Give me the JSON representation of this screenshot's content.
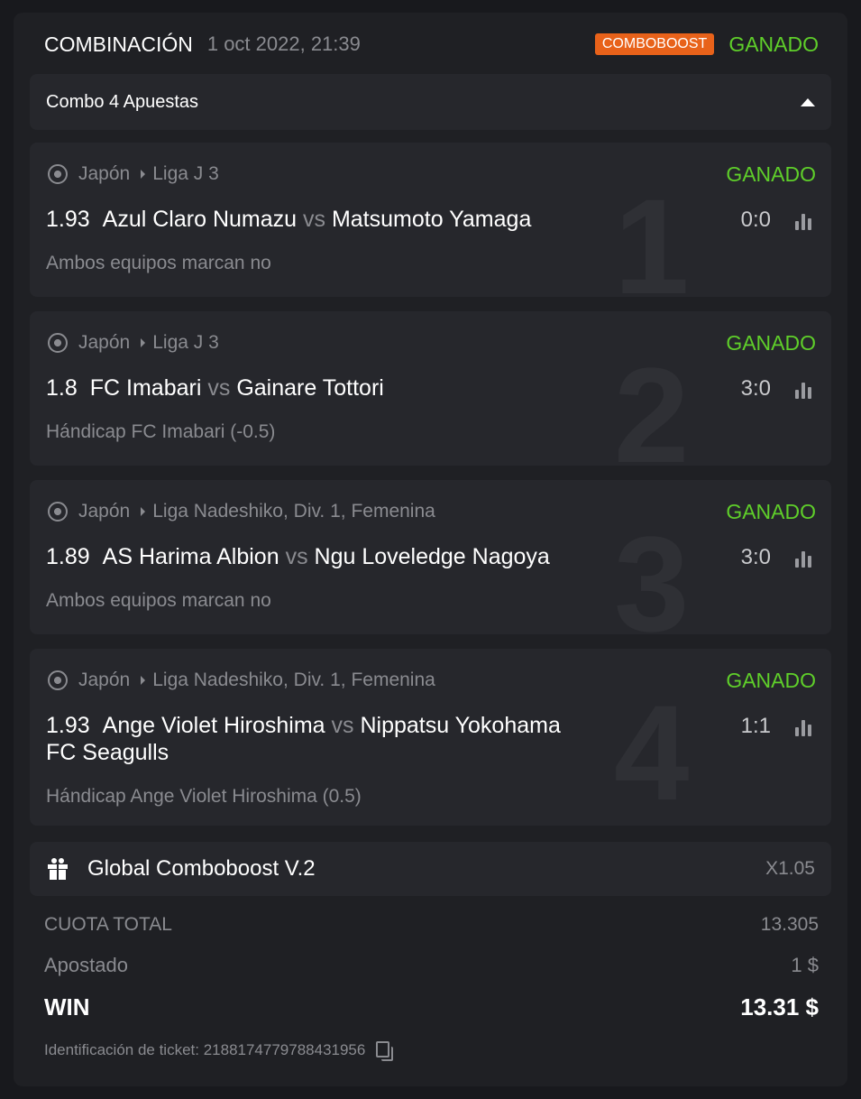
{
  "header": {
    "title": "COMBINACIÓN",
    "date": "1 oct 2022, 21:39",
    "badge": "COMBOBOOST",
    "status": "GANADO"
  },
  "combo": {
    "label": "Combo 4 Apuestas"
  },
  "bets": [
    {
      "index": "1",
      "country": "Japón",
      "league": "Liga J 3",
      "status": "GANADO",
      "odd": "1.93",
      "home": "Azul Claro Numazu",
      "vs": "vs",
      "away": "Matsumoto Yamaga",
      "score": "0:0",
      "market": "Ambos equipos marcan no"
    },
    {
      "index": "2",
      "country": "Japón",
      "league": "Liga J 3",
      "status": "GANADO",
      "odd": "1.8",
      "home": "FC Imabari",
      "vs": "vs",
      "away": "Gainare Tottori",
      "score": "3:0",
      "market": "Hándicap FC Imabari (-0.5)"
    },
    {
      "index": "3",
      "country": "Japón",
      "league": "Liga Nadeshiko, Div. 1, Femenina",
      "status": "GANADO",
      "odd": "1.89",
      "home": "AS Harima Albion",
      "vs": "vs",
      "away": "Ngu Loveledge Nagoya",
      "score": "3:0",
      "market": "Ambos equipos marcan no"
    },
    {
      "index": "4",
      "country": "Japón",
      "league": "Liga Nadeshiko, Div. 1, Femenina",
      "status": "GANADO",
      "odd": "1.93",
      "home": "Ange Violet Hiroshima",
      "vs": "vs",
      "away": "Nippatsu Yokohama FC Seagulls",
      "score": "1:1",
      "market": "Hándicap Ange Violet Hiroshima (0.5)"
    }
  ],
  "boost": {
    "label": "Global Comboboost V.2",
    "multiplier": "X1.05"
  },
  "summary": {
    "total_odds_label": "CUOTA TOTAL",
    "total_odds": "13.305",
    "stake_label": "Apostado",
    "stake": "1 $",
    "win_label": "WIN",
    "win": "13.31 $"
  },
  "ticket": {
    "label": "Identificación de ticket: 2188174779788431956"
  },
  "colors": {
    "won": "#5fcf2a",
    "badge": "#e8621a",
    "background": "#18191d",
    "card": "#1f2024",
    "box": "#26272c"
  }
}
